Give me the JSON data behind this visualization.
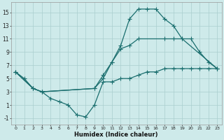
{
  "xlabel": "Humidex (Indice chaleur)",
  "bg_color": "#ceeaea",
  "grid_color": "#aacece",
  "line_color": "#1a6e6e",
  "xlim": [
    -0.5,
    23.5
  ],
  "ylim": [
    -2.0,
    16.5
  ],
  "xticks": [
    0,
    1,
    2,
    3,
    4,
    5,
    6,
    7,
    8,
    9,
    10,
    11,
    12,
    13,
    14,
    15,
    16,
    17,
    18,
    19,
    20,
    21,
    22,
    23
  ],
  "yticks": [
    -1,
    1,
    3,
    5,
    7,
    9,
    11,
    13,
    15
  ],
  "line1_x": [
    0,
    1,
    2,
    3,
    4,
    5,
    6,
    7,
    8,
    9,
    10,
    11,
    12,
    13,
    14,
    15,
    16,
    17,
    18,
    19,
    20,
    21,
    22,
    23
  ],
  "line1_y": [
    6.0,
    5.0,
    3.5,
    3.0,
    2.0,
    1.5,
    1.0,
    -0.5,
    -0.8,
    1.0,
    4.5,
    4.5,
    5.0,
    5.0,
    5.5,
    6.0,
    6.0,
    6.5,
    6.5,
    6.5,
    6.5,
    6.5,
    6.5,
    6.5
  ],
  "line2_x": [
    0,
    2,
    3,
    9,
    10,
    11,
    12,
    13,
    14,
    15,
    16,
    17,
    18,
    19,
    23
  ],
  "line2_y": [
    6.0,
    3.5,
    3.0,
    3.5,
    5.5,
    7.5,
    10.0,
    14.0,
    15.5,
    15.5,
    15.5,
    14.0,
    13.0,
    11.0,
    6.5
  ],
  "line3_x": [
    0,
    2,
    3,
    9,
    10,
    11,
    12,
    13,
    14,
    17,
    18,
    19,
    20,
    21,
    22,
    23
  ],
  "line3_y": [
    6.0,
    3.5,
    3.0,
    3.5,
    5.0,
    7.5,
    9.5,
    10.0,
    11.0,
    11.0,
    11.0,
    11.0,
    11.0,
    9.0,
    7.5,
    6.5
  ]
}
